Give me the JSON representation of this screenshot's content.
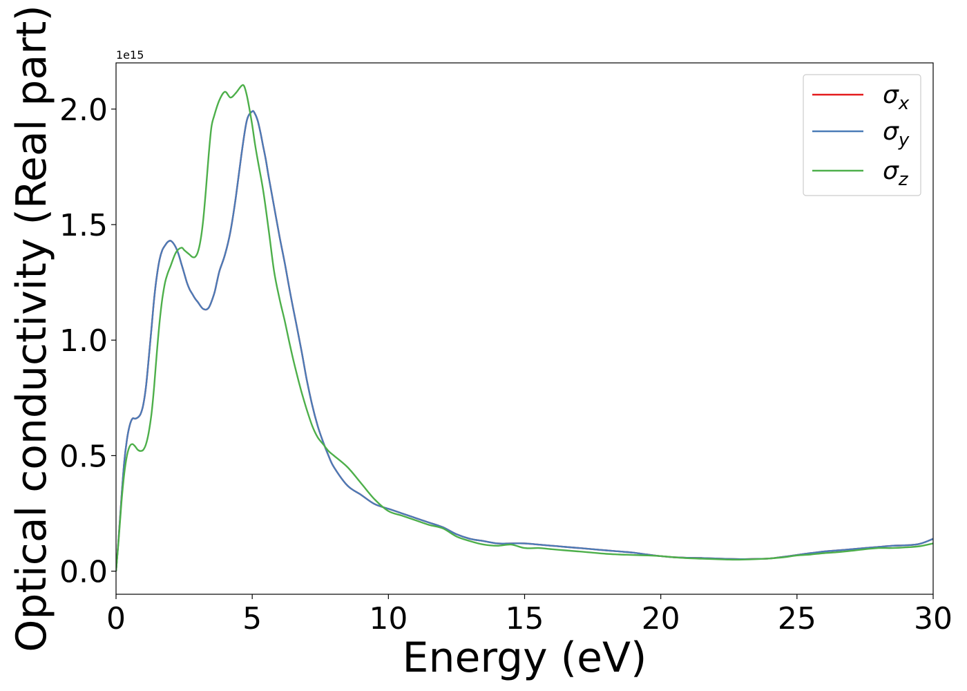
{
  "chart_data": {
    "type": "line",
    "title": "",
    "xlabel": "Energy (eV)",
    "ylabel": "Optical conductivity (Real part)",
    "y_offset_label": "1e15",
    "xlim": [
      0,
      30
    ],
    "ylim": [
      -0.1,
      2.2
    ],
    "xticks": [
      0,
      5,
      10,
      15,
      20,
      25,
      30
    ],
    "yticks": [
      0.0,
      0.5,
      1.0,
      1.5,
      2.0
    ],
    "xtick_labels": [
      "0",
      "5",
      "10",
      "15",
      "20",
      "25",
      "30"
    ],
    "ytick_labels": [
      "0.0",
      "0.5",
      "1.0",
      "1.5",
      "2.0"
    ],
    "grid": false,
    "legend_position": "top-right",
    "series": [
      {
        "name": "σx",
        "label_base": "σ",
        "label_sub": "x",
        "color": "#e41a1c",
        "x": [
          0,
          0.1,
          0.2,
          0.3,
          0.4,
          0.5,
          0.6,
          0.7,
          0.8,
          0.9,
          1.0,
          1.1,
          1.2,
          1.3,
          1.4,
          1.5,
          1.6,
          1.7,
          1.8,
          1.9,
          2.0,
          2.1,
          2.2,
          2.3,
          2.4,
          2.5,
          2.6,
          2.7,
          2.8,
          2.9,
          3.0,
          3.2,
          3.4,
          3.6,
          3.7,
          3.8,
          4.0,
          4.2,
          4.4,
          4.6,
          4.8,
          5.0,
          5.1,
          5.2,
          5.3,
          5.4,
          5.5,
          5.6,
          5.8,
          6.0,
          6.2,
          6.4,
          6.6,
          6.8,
          7.0,
          7.2,
          7.4,
          7.6,
          7.8,
          8.0,
          8.5,
          9.0,
          9.5,
          10,
          10.5,
          11,
          11.5,
          12,
          12.5,
          13,
          13.5,
          14,
          14.5,
          15,
          15.5,
          16,
          16.5,
          17,
          17.5,
          18,
          18.5,
          19,
          19.5,
          20,
          20.5,
          21,
          21.5,
          22,
          22.5,
          23,
          23.5,
          24,
          24.5,
          25,
          25.5,
          26,
          26.5,
          27,
          27.5,
          28,
          28.5,
          29,
          29.5,
          30
        ],
        "y": [
          0,
          0.15,
          0.32,
          0.47,
          0.57,
          0.63,
          0.66,
          0.66,
          0.665,
          0.68,
          0.72,
          0.8,
          0.92,
          1.05,
          1.18,
          1.28,
          1.35,
          1.39,
          1.41,
          1.425,
          1.43,
          1.42,
          1.4,
          1.37,
          1.33,
          1.29,
          1.25,
          1.22,
          1.2,
          1.18,
          1.165,
          1.135,
          1.14,
          1.2,
          1.25,
          1.3,
          1.37,
          1.47,
          1.62,
          1.8,
          1.95,
          1.99,
          1.98,
          1.95,
          1.9,
          1.84,
          1.78,
          1.71,
          1.58,
          1.45,
          1.33,
          1.2,
          1.08,
          0.96,
          0.83,
          0.72,
          0.63,
          0.56,
          0.5,
          0.45,
          0.37,
          0.33,
          0.29,
          0.27,
          0.25,
          0.23,
          0.21,
          0.19,
          0.16,
          0.14,
          0.13,
          0.12,
          0.12,
          0.12,
          0.115,
          0.11,
          0.105,
          0.1,
          0.095,
          0.09,
          0.085,
          0.08,
          0.072,
          0.065,
          0.06,
          0.058,
          0.057,
          0.055,
          0.053,
          0.052,
          0.053,
          0.055,
          0.062,
          0.07,
          0.078,
          0.085,
          0.09,
          0.095,
          0.1,
          0.105,
          0.11,
          0.112,
          0.118,
          0.14
        ]
      },
      {
        "name": "σy",
        "label_base": "σ",
        "label_sub": "y",
        "color": "#4a7bb7",
        "x": [
          0,
          0.1,
          0.2,
          0.3,
          0.4,
          0.5,
          0.6,
          0.7,
          0.8,
          0.9,
          1.0,
          1.1,
          1.2,
          1.3,
          1.4,
          1.5,
          1.6,
          1.7,
          1.8,
          1.9,
          2.0,
          2.1,
          2.2,
          2.3,
          2.4,
          2.5,
          2.6,
          2.7,
          2.8,
          2.9,
          3.0,
          3.2,
          3.4,
          3.6,
          3.7,
          3.8,
          4.0,
          4.2,
          4.4,
          4.6,
          4.8,
          5.0,
          5.1,
          5.2,
          5.3,
          5.4,
          5.5,
          5.6,
          5.8,
          6.0,
          6.2,
          6.4,
          6.6,
          6.8,
          7.0,
          7.2,
          7.4,
          7.6,
          7.8,
          8.0,
          8.5,
          9.0,
          9.5,
          10,
          10.5,
          11,
          11.5,
          12,
          12.5,
          13,
          13.5,
          14,
          14.5,
          15,
          15.5,
          16,
          16.5,
          17,
          17.5,
          18,
          18.5,
          19,
          19.5,
          20,
          20.5,
          21,
          21.5,
          22,
          22.5,
          23,
          23.5,
          24,
          24.5,
          25,
          25.5,
          26,
          26.5,
          27,
          27.5,
          28,
          28.5,
          29,
          29.5,
          30
        ],
        "y": [
          0,
          0.15,
          0.32,
          0.47,
          0.57,
          0.63,
          0.66,
          0.66,
          0.665,
          0.68,
          0.72,
          0.8,
          0.92,
          1.05,
          1.18,
          1.28,
          1.35,
          1.39,
          1.41,
          1.425,
          1.43,
          1.42,
          1.4,
          1.37,
          1.33,
          1.29,
          1.25,
          1.22,
          1.2,
          1.18,
          1.165,
          1.135,
          1.14,
          1.2,
          1.25,
          1.3,
          1.37,
          1.47,
          1.62,
          1.8,
          1.95,
          1.99,
          1.98,
          1.95,
          1.9,
          1.84,
          1.78,
          1.71,
          1.58,
          1.45,
          1.33,
          1.2,
          1.08,
          0.96,
          0.83,
          0.72,
          0.63,
          0.56,
          0.5,
          0.45,
          0.37,
          0.33,
          0.29,
          0.27,
          0.25,
          0.23,
          0.21,
          0.19,
          0.16,
          0.14,
          0.13,
          0.12,
          0.12,
          0.12,
          0.115,
          0.11,
          0.105,
          0.1,
          0.095,
          0.09,
          0.085,
          0.08,
          0.072,
          0.065,
          0.06,
          0.058,
          0.057,
          0.055,
          0.053,
          0.052,
          0.053,
          0.055,
          0.062,
          0.07,
          0.078,
          0.085,
          0.09,
          0.095,
          0.1,
          0.105,
          0.11,
          0.112,
          0.118,
          0.14
        ]
      },
      {
        "name": "σz",
        "label_base": "σ",
        "label_sub": "z",
        "color": "#4daf4a",
        "x": [
          0,
          0.1,
          0.2,
          0.3,
          0.4,
          0.5,
          0.6,
          0.7,
          0.8,
          0.9,
          1.0,
          1.1,
          1.2,
          1.3,
          1.4,
          1.5,
          1.6,
          1.7,
          1.8,
          1.9,
          2.0,
          2.2,
          2.4,
          2.5,
          2.6,
          2.7,
          2.8,
          2.9,
          3.0,
          3.1,
          3.2,
          3.3,
          3.4,
          3.5,
          3.6,
          3.8,
          4.0,
          4.2,
          4.4,
          4.6,
          4.7,
          4.8,
          4.9,
          5.0,
          5.1,
          5.2,
          5.4,
          5.6,
          5.8,
          6.0,
          6.2,
          6.4,
          6.6,
          6.8,
          7.0,
          7.2,
          7.4,
          7.6,
          7.8,
          8.0,
          8.5,
          9.0,
          9.5,
          10,
          10.5,
          11,
          11.5,
          12,
          12.5,
          13,
          13.5,
          14,
          14.5,
          15,
          15.5,
          16,
          16.5,
          17,
          17.5,
          18,
          18.5,
          19,
          19.5,
          20,
          20.5,
          21,
          21.5,
          22,
          22.5,
          23,
          23.5,
          24,
          24.5,
          25,
          25.5,
          26,
          26.5,
          27,
          27.5,
          28,
          28.5,
          29,
          29.5,
          30
        ],
        "y": [
          0,
          0.14,
          0.3,
          0.42,
          0.5,
          0.54,
          0.55,
          0.54,
          0.525,
          0.52,
          0.525,
          0.55,
          0.6,
          0.68,
          0.8,
          0.95,
          1.08,
          1.18,
          1.25,
          1.29,
          1.32,
          1.38,
          1.4,
          1.39,
          1.38,
          1.37,
          1.36,
          1.36,
          1.38,
          1.43,
          1.52,
          1.65,
          1.8,
          1.92,
          1.97,
          2.04,
          2.075,
          2.05,
          2.07,
          2.1,
          2.1,
          2.06,
          2.0,
          1.93,
          1.85,
          1.78,
          1.65,
          1.48,
          1.3,
          1.18,
          1.08,
          0.97,
          0.87,
          0.78,
          0.7,
          0.63,
          0.58,
          0.55,
          0.52,
          0.5,
          0.45,
          0.38,
          0.31,
          0.26,
          0.24,
          0.22,
          0.2,
          0.185,
          0.15,
          0.13,
          0.115,
          0.11,
          0.115,
          0.1,
          0.1,
          0.095,
          0.09,
          0.085,
          0.08,
          0.075,
          0.072,
          0.07,
          0.068,
          0.065,
          0.06,
          0.056,
          0.054,
          0.052,
          0.05,
          0.05,
          0.052,
          0.055,
          0.06,
          0.068,
          0.072,
          0.078,
          0.082,
          0.088,
          0.095,
          0.1,
          0.1,
          0.103,
          0.108,
          0.12
        ]
      }
    ]
  }
}
